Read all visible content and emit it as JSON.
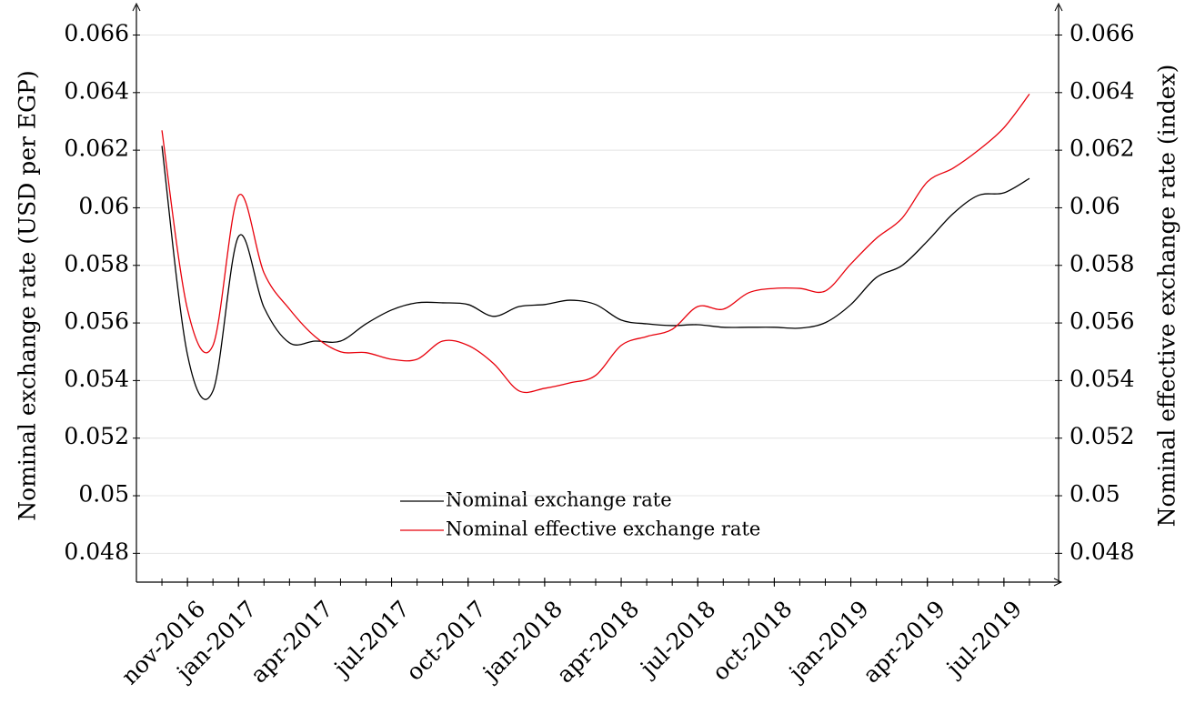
{
  "chart_data": {
    "type": "line",
    "y_label": "Nominal exchange rate (USD per EGP)",
    "y2_label": "Nominal effective exchange rate (index)",
    "x": [
      "2016-10",
      "2016-11",
      "2016-12",
      "2017-01",
      "2017-02",
      "2017-03",
      "2017-04",
      "2017-05",
      "2017-06",
      "2017-07",
      "2017-08",
      "2017-09",
      "2017-10",
      "2017-11",
      "2017-12",
      "2018-01",
      "2018-02",
      "2018-03",
      "2018-04",
      "2018-05",
      "2018-06",
      "2018-07",
      "2018-08",
      "2018-09",
      "2018-10",
      "2018-11",
      "2018-12",
      "2019-01",
      "2019-02",
      "2019-03",
      "2019-04",
      "2019-05",
      "2019-06",
      "2019-07",
      "2019-08"
    ],
    "series": [
      {
        "name": "Nominal exchange rate",
        "color": "#000000",
        "values": [
          0.06215,
          0.0549,
          0.05364,
          0.059,
          0.05654,
          0.05531,
          0.05537,
          0.05537,
          0.05597,
          0.05645,
          0.0567,
          0.0567,
          0.05664,
          0.05623,
          0.05657,
          0.05664,
          0.05679,
          0.05664,
          0.0561,
          0.05597,
          0.05591,
          0.05594,
          0.05585,
          0.05585,
          0.05585,
          0.05582,
          0.05601,
          0.05664,
          0.05758,
          0.05799,
          0.05884,
          0.05979,
          0.06043,
          0.06052,
          0.06102
        ]
      },
      {
        "name": "Nominal effective exchange rate",
        "color": "#e8000b",
        "axis": "y2",
        "values": [
          0.06269,
          0.05648,
          0.05522,
          0.06042,
          0.05774,
          0.05648,
          0.05553,
          0.055,
          0.05497,
          0.05474,
          0.05474,
          0.05537,
          0.05522,
          0.05459,
          0.05364,
          0.05373,
          0.05392,
          0.05418,
          0.05522,
          0.05553,
          0.05578,
          0.05657,
          0.05648,
          0.05705,
          0.0572,
          0.0572,
          0.05711,
          0.05805,
          0.05894,
          0.05963,
          0.0609,
          0.06137,
          0.062,
          0.06278,
          0.06395
        ]
      }
    ],
    "xlim": [
      "2016-09",
      "2019-09"
    ],
    "xticks": [
      {
        "value": "2016-11",
        "label": "nov-2016"
      },
      {
        "value": "2017-01",
        "label": "jan-2017"
      },
      {
        "value": "2017-04",
        "label": "apr-2017"
      },
      {
        "value": "2017-07",
        "label": "jul-2017"
      },
      {
        "value": "2017-10",
        "label": "oct-2017"
      },
      {
        "value": "2018-01",
        "label": "jan-2018"
      },
      {
        "value": "2018-04",
        "label": "apr-2018"
      },
      {
        "value": "2018-07",
        "label": "jul-2018"
      },
      {
        "value": "2018-10",
        "label": "oct-2018"
      },
      {
        "value": "2019-01",
        "label": "jan-2019"
      },
      {
        "value": "2019-04",
        "label": "apr-2019"
      },
      {
        "value": "2019-07",
        "label": "jul-2019"
      }
    ],
    "ylim": [
      0.047,
      0.0669
    ],
    "yticks": [
      0.048,
      0.05,
      0.052,
      0.054,
      0.056,
      0.058,
      0.06,
      0.062,
      0.064,
      0.066
    ],
    "y2lim": [
      0.047,
      0.0669
    ],
    "y2ticks": [
      0.048,
      0.05,
      0.052,
      0.054,
      0.056,
      0.058,
      0.06,
      0.062,
      0.064,
      0.066
    ],
    "grid": true
  }
}
